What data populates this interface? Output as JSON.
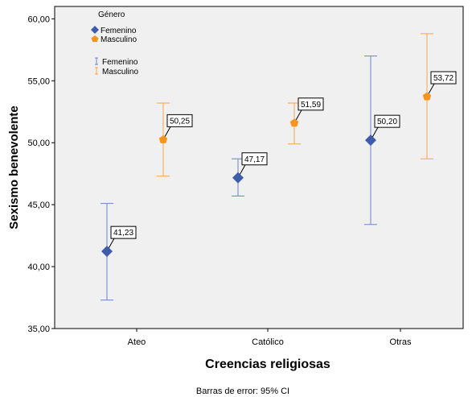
{
  "chart_data": {
    "type": "scatter",
    "title": "",
    "xlabel": "Creencias religiosas",
    "ylabel": "Sexismo benevolente",
    "footnote": "Barras de error: 95% CI",
    "categories": [
      "Ateo",
      "Católico",
      "Otras"
    ],
    "ylim": [
      35,
      61
    ],
    "yticks": [
      "35,00",
      "40,00",
      "45,00",
      "50,00",
      "55,00",
      "60,00"
    ],
    "ytick_values": [
      35,
      40,
      45,
      50,
      55,
      60
    ],
    "grid": false,
    "legend": {
      "title": "Género",
      "placement": "top-left",
      "marker_entries": [
        "Femenino",
        "Masculino"
      ],
      "errorbar_entries": [
        "Femenino",
        "Masculino"
      ]
    },
    "series": [
      {
        "name": "Femenino",
        "color": "#3f5ba9",
        "errorbar_color": "#6b84c8",
        "marker": "diamond",
        "values": [
          41.23,
          47.17,
          50.2
        ],
        "labels": [
          "41,23",
          "47,17",
          "50,20"
        ],
        "ci_low": [
          37.3,
          45.7,
          43.4
        ],
        "ci_high": [
          45.1,
          48.7,
          57.0
        ]
      },
      {
        "name": "Masculino",
        "color": "#f7941d",
        "errorbar_color": "#f7a640",
        "marker": "pentagon",
        "values": [
          50.25,
          51.59,
          53.72
        ],
        "labels": [
          "50,25",
          "51,59",
          "53,72"
        ],
        "ci_low": [
          47.3,
          49.9,
          48.7
        ],
        "ci_high": [
          53.2,
          53.2,
          58.8
        ]
      }
    ],
    "colors": {
      "plot_background": "#f0f0f0"
    }
  }
}
